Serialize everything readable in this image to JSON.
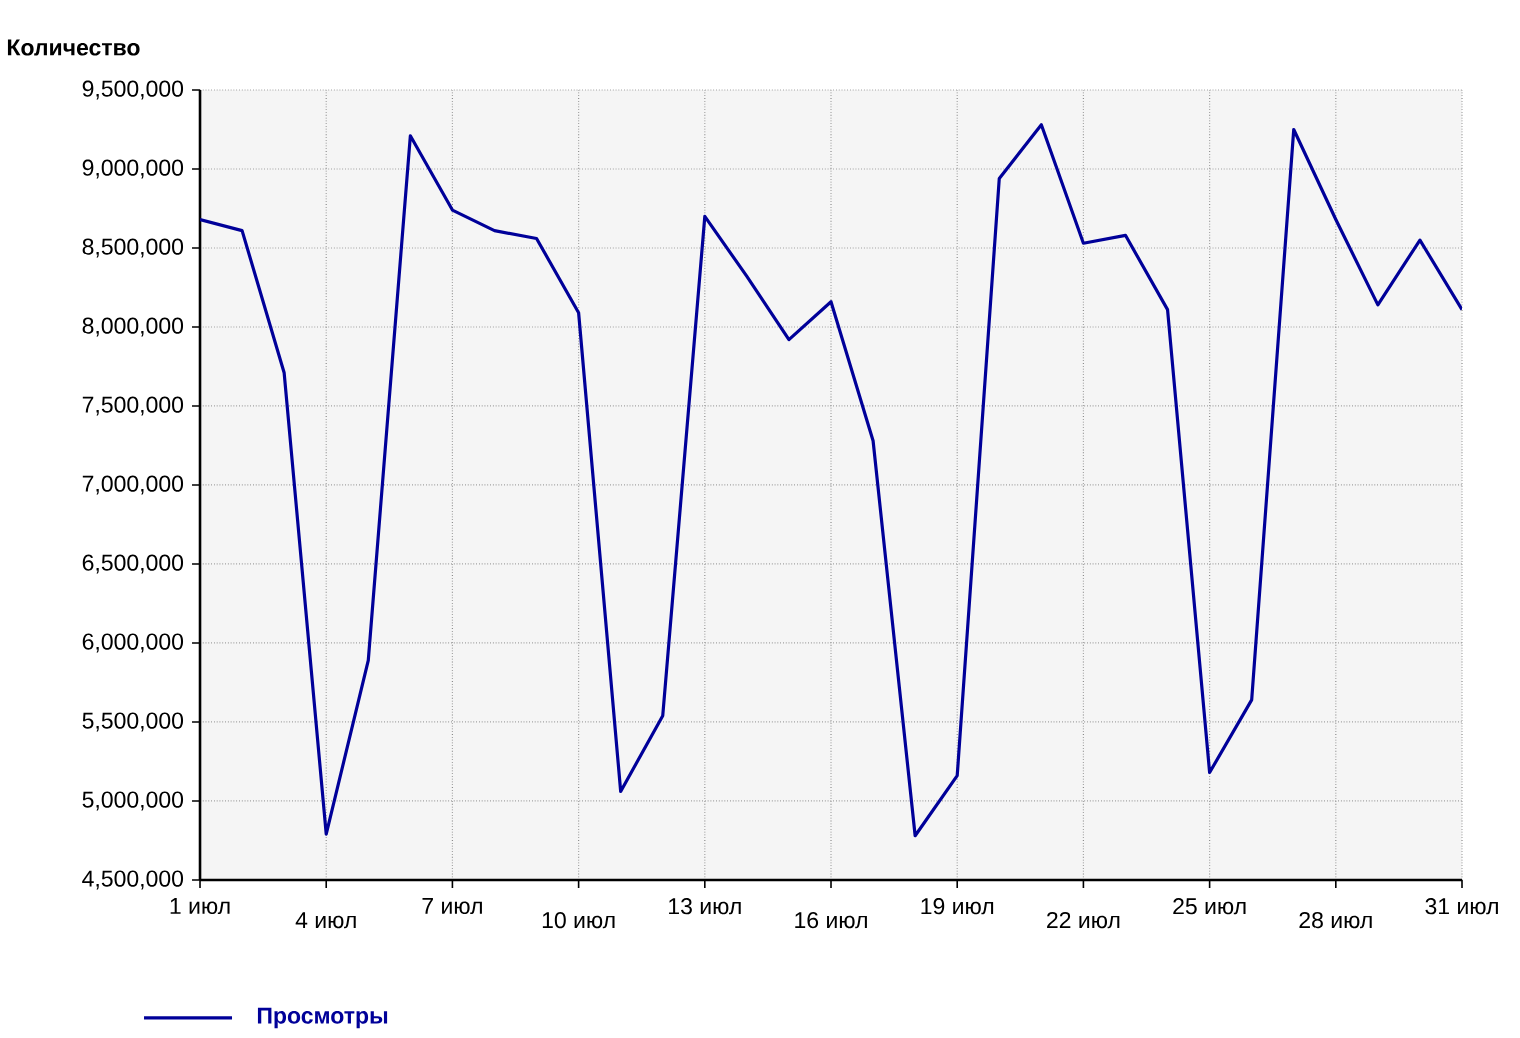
{
  "chart_data": {
    "type": "line",
    "ylabel": "Количество",
    "categories": [
      "1 июл",
      null,
      null,
      "4 июл",
      null,
      null,
      "7 июл",
      null,
      null,
      "10 июл",
      null,
      null,
      "13 июл",
      null,
      null,
      "16 июл",
      null,
      null,
      "19 июл",
      null,
      null,
      "22 июл",
      null,
      null,
      "25 июл",
      null,
      null,
      "28 июл",
      null,
      null,
      "31 июл"
    ],
    "series": [
      {
        "name": "Просмотры",
        "color": "#000099",
        "values": [
          8680000,
          8610000,
          7710000,
          4790000,
          5890000,
          9210000,
          8740000,
          8610000,
          8560000,
          8090000,
          5060000,
          5540000,
          8700000,
          8320000,
          7920000,
          8160000,
          7280000,
          4780000,
          5160000,
          8940000,
          9280000,
          8530000,
          8580000,
          8110000,
          5180000,
          5640000,
          9250000,
          8680000,
          8140000,
          8550000,
          8110000
        ]
      }
    ],
    "ylim": [
      4500000,
      9500000
    ],
    "yticks": [
      {
        "value": 4500000,
        "label": "4,500,000"
      },
      {
        "value": 5000000,
        "label": "5,000,000"
      },
      {
        "value": 5500000,
        "label": "5,500,000"
      },
      {
        "value": 6000000,
        "label": "6,000,000"
      },
      {
        "value": 6500000,
        "label": "6,500,000"
      },
      {
        "value": 7000000,
        "label": "7,000,000"
      },
      {
        "value": 7500000,
        "label": "7,500,000"
      },
      {
        "value": 8000000,
        "label": "8,000,000"
      },
      {
        "value": 8500000,
        "label": "8,500,000"
      },
      {
        "value": 9000000,
        "label": "9,000,000"
      },
      {
        "value": 9500000,
        "label": "9,500,000"
      }
    ],
    "grid": true,
    "legend": "bottom left",
    "marker": "none",
    "line_style": "solid"
  }
}
